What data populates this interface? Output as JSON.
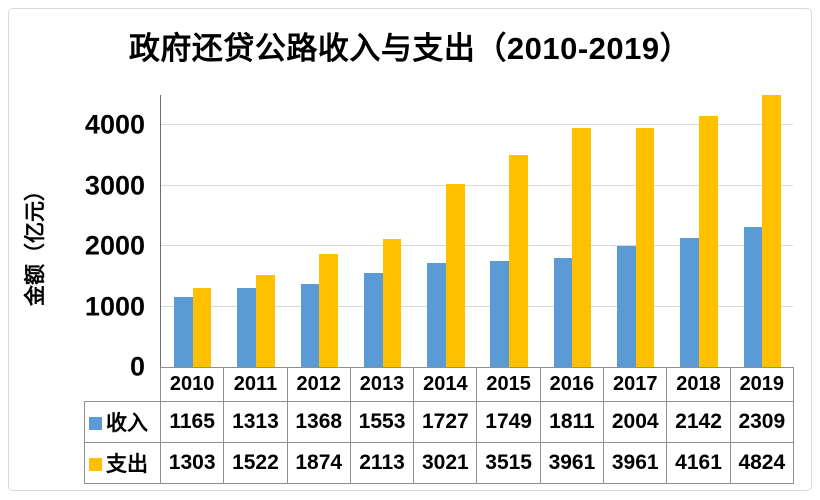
{
  "title": "政府还贷公路收入与支出（2010-2019）",
  "colors": {
    "income": "#5B9BD5",
    "expense": "#FFC000",
    "gridline": "#D9D9D9",
    "axis_line": "#6E6E6E",
    "table_border": "#8F8F8F"
  },
  "chart_data": {
    "type": "bar",
    "title": "政府还贷公路收入与支出（2010-2019）",
    "xlabel": "",
    "ylabel": "金额（亿元）",
    "categories": [
      "2010",
      "2011",
      "2012",
      "2013",
      "2014",
      "2015",
      "2016",
      "2017",
      "2018",
      "2019"
    ],
    "series": [
      {
        "id": "income",
        "name": "收入",
        "color": "#5B9BD5",
        "values": [
          1165,
          1313,
          1368,
          1553,
          1727,
          1749,
          1811,
          2004,
          2142,
          2309
        ]
      },
      {
        "id": "expense",
        "name": "支出",
        "color": "#FFC000",
        "values": [
          1303,
          1522,
          1874,
          2113,
          3021,
          3515,
          3961,
          3961,
          4161,
          4824
        ]
      }
    ],
    "yticks": [
      0,
      1000,
      2000,
      3000,
      4000
    ],
    "ylim": [
      0,
      4500
    ],
    "grid": true,
    "legend_position": "table-below"
  }
}
